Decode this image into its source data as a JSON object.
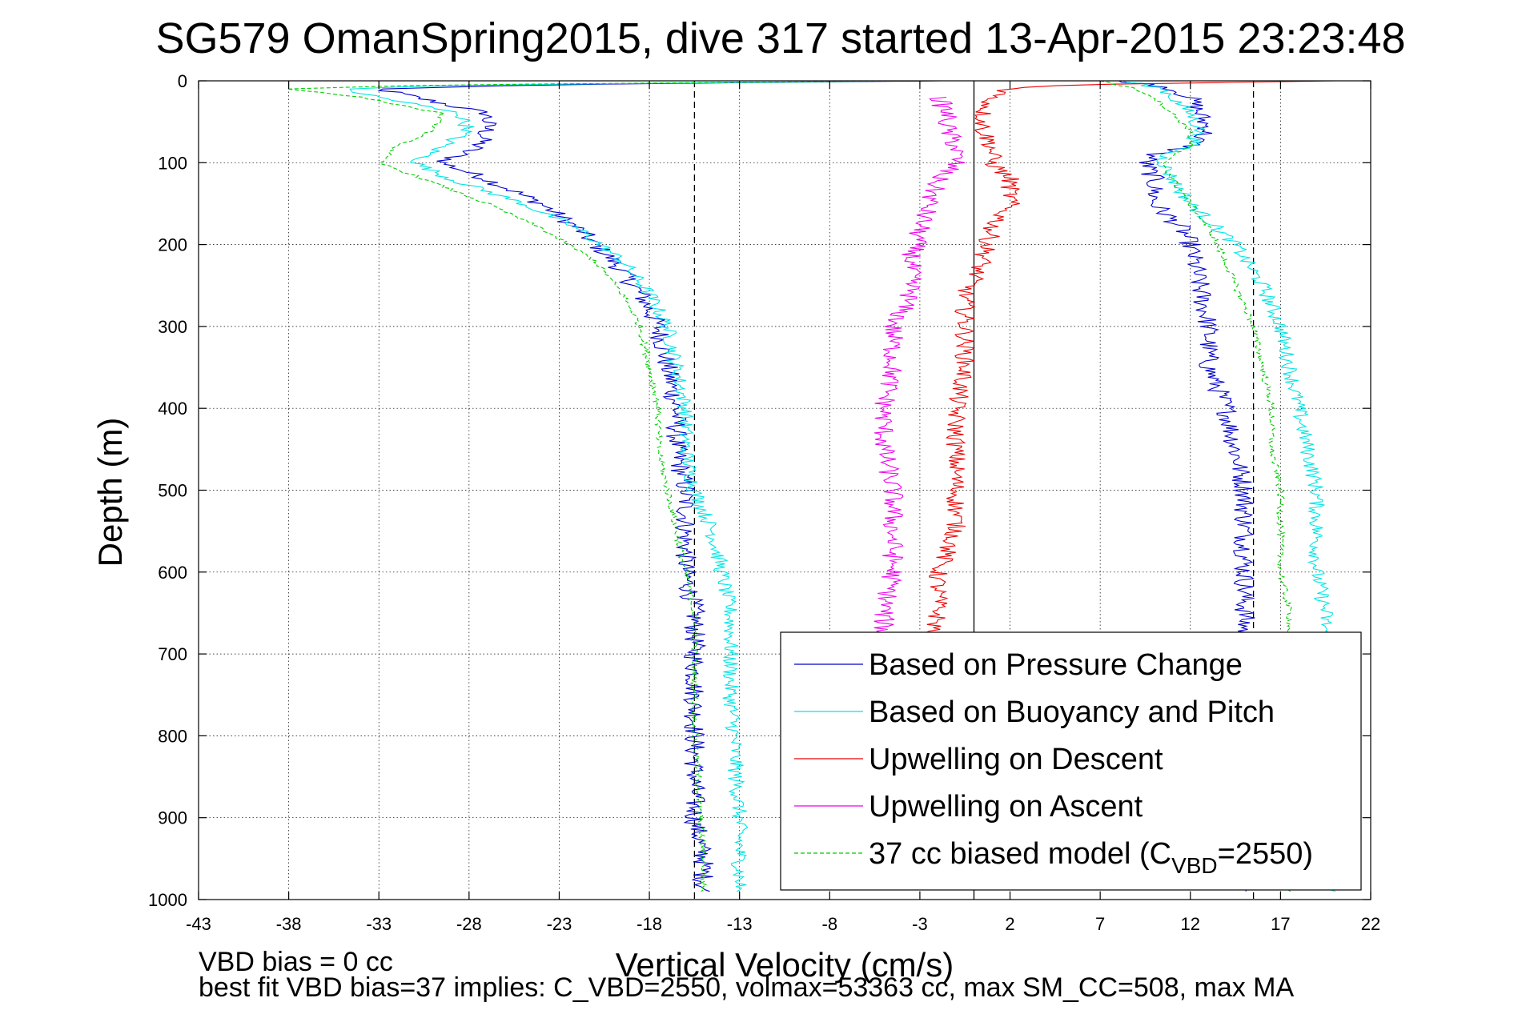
{
  "chart_data": {
    "type": "line",
    "title": "SG579 OmanSpring2015, dive 317 started 13-Apr-2015 23:23:48",
    "xlabel": "Vertical Velocity (cm/s)",
    "ylabel": "Depth (m)",
    "xlim": [
      -43,
      22
    ],
    "ylim": [
      0,
      1000
    ],
    "y_reversed": true,
    "grid": true,
    "x_ticks": [
      -43,
      -38,
      -33,
      -28,
      -23,
      -18,
      -13,
      -8,
      -3,
      2,
      7,
      12,
      17,
      22
    ],
    "y_ticks": [
      0,
      100,
      200,
      300,
      400,
      500,
      600,
      700,
      800,
      900,
      1000
    ],
    "x_tick_labels": [
      "-43",
      "-38",
      "-33",
      "-28",
      "-23",
      "-18",
      "-13",
      "-8",
      "-3",
      "2",
      "7",
      "12",
      "17",
      "22"
    ],
    "y_tick_labels": [
      "0",
      "100",
      "200",
      "300",
      "400",
      "500",
      "600",
      "700",
      "800",
      "900",
      "1000"
    ],
    "vertical_lines": [
      {
        "x": -15.5,
        "style": "dashed",
        "color": "#000000"
      },
      {
        "x": 0,
        "style": "solid",
        "color": "#000000"
      },
      {
        "x": 15.5,
        "style": "dashed",
        "color": "#000000"
      }
    ],
    "legend_position": "lower-right",
    "series": [
      {
        "name": "Based on Pressure Change",
        "color": "#0000cc",
        "style": "solid",
        "noise": 0.6,
        "segments": [
          {
            "depth": [
              0,
              5,
              10,
              20,
              40,
              60,
              80,
              100,
              120,
              150,
              180,
              220,
              260,
              300,
              350,
              400,
              450,
              500,
              550,
              600,
              650,
              700,
              750,
              800,
              850,
              900,
              950,
              985,
              990
            ],
            "vel": [
              -2,
              -25,
              -33,
              -31,
              -27,
              -27,
              -27.5,
              -29.5,
              -27,
              -24,
              -22,
              -20,
              -18.5,
              -17.5,
              -17,
              -16.5,
              -16.5,
              -16,
              -16,
              -16,
              -15.5,
              -15.5,
              -15.5,
              -15.5,
              -15.5,
              -15.5,
              -15,
              -15,
              -15
            ]
          },
          {
            "depth": [
              0,
              5,
              10,
              20,
              40,
              60,
              80,
              90,
              100,
              120,
              150,
              180,
              200,
              250,
              300,
              350,
              400,
              450,
              500,
              550,
              600,
              650,
              700,
              750,
              800,
              850,
              900,
              950,
              990
            ],
            "vel": [
              8,
              10,
              11,
              12,
              12.5,
              13,
              12,
              10,
              9.5,
              10,
              10,
              11.5,
              12,
              12.5,
              13,
              13,
              14,
              14.5,
              15,
              15,
              15,
              15,
              15,
              15,
              15,
              15,
              15,
              15,
              15
            ]
          }
        ]
      },
      {
        "name": "Based on Buoyancy and Pitch",
        "color": "#00e5e5",
        "style": "solid",
        "noise": 0.45,
        "segments": [
          {
            "depth": [
              0,
              5,
              10,
              20,
              40,
              60,
              80,
              100,
              120,
              150,
              180,
              220,
              260,
              300,
              350,
              400,
              450,
              500,
              550,
              600,
              650,
              700,
              750,
              800,
              850,
              900,
              950,
              985,
              990
            ],
            "vel": [
              -3,
              -28,
              -35,
              -33,
              -28.5,
              -28,
              -29.5,
              -31,
              -29,
              -25,
              -22,
              -19.5,
              -18,
              -17,
              -16.5,
              -16,
              -16,
              -15.5,
              -14.5,
              -14,
              -13.5,
              -13.5,
              -13.5,
              -13.3,
              -13.2,
              -13,
              -13,
              -13,
              -13
            ]
          },
          {
            "depth": [
              0,
              5,
              10,
              20,
              40,
              60,
              80,
              90,
              100,
              120,
              150,
              180,
              200,
              250,
              300,
              350,
              400,
              450,
              500,
              550,
              600,
              650,
              700,
              750,
              800,
              850,
              900,
              950,
              990
            ],
            "vel": [
              8,
              9.5,
              10.5,
              11,
              12,
              12.5,
              12,
              10.5,
              10.5,
              11,
              12,
              13.5,
              14.5,
              16,
              17,
              17.5,
              18,
              18.5,
              19,
              19,
              19,
              19.5,
              19.5,
              20,
              20,
              20,
              20.5,
              20.5,
              20
            ]
          }
        ]
      },
      {
        "name": "Upwelling on Descent",
        "color": "#ee0000",
        "style": "solid",
        "noise": 0.55,
        "segments": [
          {
            "depth": [
              0,
              5,
              10,
              20,
              40,
              60,
              80,
              100,
              120,
              150,
              180,
              220,
              260,
              300,
              350,
              400,
              450,
              500,
              550,
              600,
              650,
              700
            ],
            "vel": [
              20,
              5,
              2,
              1,
              0.5,
              0.5,
              1,
              1,
              2,
              2,
              1,
              0.5,
              -0.5,
              -0.5,
              -0.5,
              -1,
              -1,
              -1,
              -1,
              -2,
              -2,
              -2.5
            ]
          }
        ]
      },
      {
        "name": "Upwelling on Ascent",
        "color": "#ee00ee",
        "style": "solid",
        "noise": 0.6,
        "segments": [
          {
            "depth": [
              20,
              40,
              60,
              80,
              100,
              120,
              150,
              180,
              220,
              260,
              300,
              350,
              400,
              450,
              500,
              550,
              600,
              650,
              700
            ],
            "vel": [
              -2,
              -1.5,
              -1.5,
              -1,
              -1,
              -2,
              -2.5,
              -3,
              -3.5,
              -3.5,
              -4.5,
              -4.5,
              -5,
              -5,
              -4.5,
              -4.5,
              -4.5,
              -5,
              -5
            ]
          }
        ]
      },
      {
        "name": "37 cc biased model (CVBD=2550)",
        "legend_text_main": "37 cc biased model (C",
        "legend_text_sub": "VBD",
        "legend_text_tail": "=2550)",
        "color": "#00cc00",
        "style": "dashed",
        "noise": 0.2,
        "segments": [
          {
            "depth": [
              0,
              5,
              10,
              20,
              40,
              60,
              80,
              100,
              120,
              150,
              180,
              220,
              260,
              300,
              350,
              400,
              450,
              500,
              550,
              600,
              650,
              700,
              750,
              800,
              850,
              900,
              950,
              985,
              990
            ],
            "vel": [
              -3,
              -30,
              -38,
              -34,
              -29.5,
              -30,
              -32,
              -33,
              -30.5,
              -27,
              -24,
              -21,
              -19.5,
              -18.5,
              -18,
              -17.5,
              -17.5,
              -17,
              -16.5,
              -16,
              -15.5,
              -15.5,
              -15.5,
              -15.5,
              -15.3,
              -15.2,
              -15,
              -15,
              -15
            ]
          },
          {
            "depth": [
              0,
              5,
              10,
              20,
              40,
              60,
              80,
              90,
              100,
              120,
              150,
              180,
              200,
              250,
              300,
              350,
              400,
              450,
              500,
              550,
              600,
              650,
              700,
              750,
              800,
              850,
              900,
              950,
              990
            ],
            "vel": [
              7,
              8,
              9,
              10,
              11,
              12,
              12,
              11,
              10.5,
              11,
              12,
              13,
              13.5,
              14.5,
              15.5,
              16,
              16.5,
              16.5,
              17,
              17,
              17,
              17.5,
              17.5,
              17.5,
              17.5,
              17.5,
              17.5,
              17.5,
              17.5
            ]
          }
        ]
      }
    ],
    "footer": {
      "line1": "VBD bias = 0 cc",
      "line2": "best fit VBD bias=37 implies: C_VBD=2550, volmax=53363 cc, max SM_CC=508, max MA"
    }
  }
}
